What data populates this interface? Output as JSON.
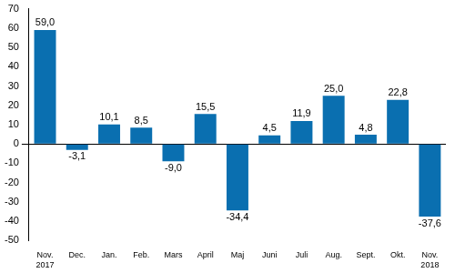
{
  "chart_data": {
    "type": "bar",
    "categories": [
      "Nov.\n2017",
      "Dec.",
      "Jan.",
      "Feb.",
      "Mars",
      "April",
      "Maj",
      "Juni",
      "Juli",
      "Aug.",
      "Sept.",
      "Okt.",
      "Nov.\n2018"
    ],
    "values": [
      59.0,
      -3.1,
      10.1,
      8.5,
      -9.0,
      15.5,
      -34.4,
      4.5,
      11.9,
      25.0,
      4.8,
      22.8,
      -37.6
    ],
    "value_labels": [
      "59,0",
      "-3,1",
      "10,1",
      "8,5",
      "-9,0",
      "15,5",
      "-34,4",
      "4,5",
      "11,9",
      "25,0",
      "4,8",
      "22,8",
      "-37,6"
    ],
    "data_labels": true,
    "color": "#0a6fb0",
    "ylim": [
      -50,
      70
    ],
    "yticks": [
      -50,
      -40,
      -30,
      -20,
      -10,
      0,
      10,
      20,
      30,
      40,
      50,
      60,
      70
    ],
    "grid": false
  }
}
